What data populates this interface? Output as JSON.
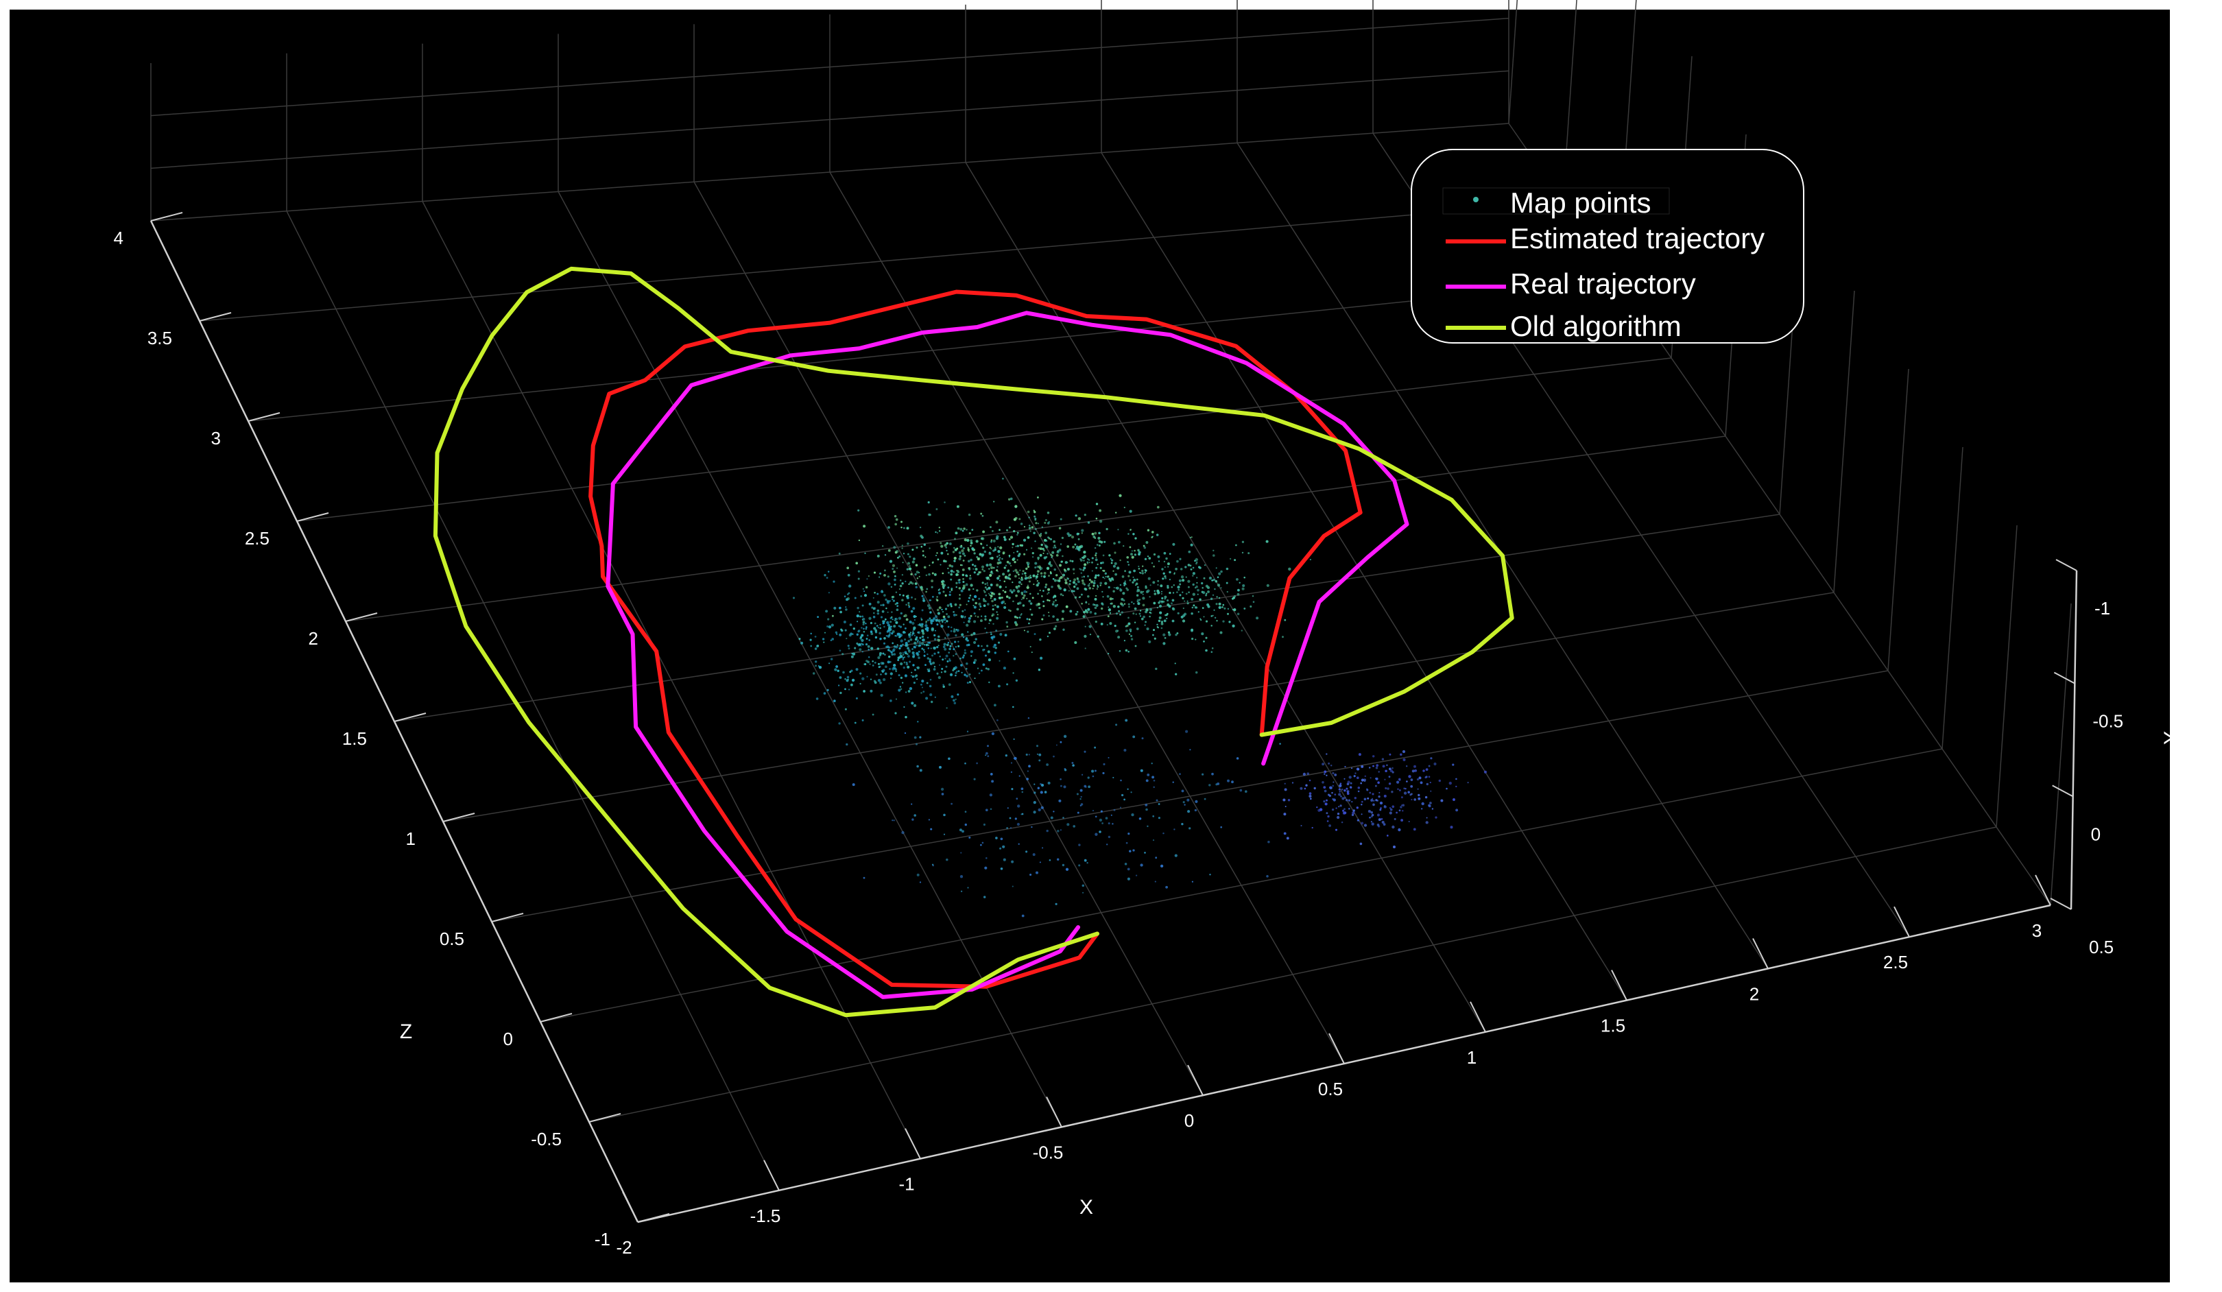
{
  "chart_data": {
    "type": "scatter3d",
    "title": "",
    "xlabel": "X",
    "ylabel": "Y",
    "zlabel": "Z",
    "x_ticks": [
      "-2",
      "-1.5",
      "-1",
      "-0.5",
      "0",
      "0.5",
      "1",
      "1.5",
      "2",
      "2.5",
      "3"
    ],
    "z_ticks": [
      "-1",
      "-0.5",
      "0",
      "0.5",
      "1",
      "1.5",
      "2",
      "2.5",
      "3",
      "3.5",
      "4"
    ],
    "y_ticks": [
      "-1",
      "-0.5",
      "0",
      "0.5"
    ],
    "xlim": [
      -2,
      3
    ],
    "zlim": [
      -1,
      4
    ],
    "ylim": [
      -1,
      0.5
    ],
    "grid": true,
    "background": "#000000",
    "legend": {
      "placement": "top-right",
      "entries": [
        {
          "label": "Map points",
          "color": "#3fb8a8",
          "marker": "point"
        },
        {
          "label": "Estimated trajectory",
          "color": "#ff1a1a",
          "marker": "line"
        },
        {
          "label": "Real trajectory",
          "color": "#ff1aff",
          "marker": "line"
        },
        {
          "label": "Old algorithm",
          "color": "#c8f02a",
          "marker": "line"
        }
      ]
    },
    "series": [
      {
        "name": "Estimated trajectory",
        "color": "#ff1a1a",
        "x": [
          -0.05,
          -0.15,
          -0.5,
          -0.8,
          -1.0,
          -1.05,
          -1.1,
          -1.0,
          -1.05,
          -1.0,
          -0.95,
          -0.85,
          -0.7,
          -0.55,
          -0.35,
          -0.1,
          0.2,
          0.45,
          0.7,
          0.9,
          1.1,
          1.3,
          1.55,
          1.65,
          1.7,
          1.62,
          1.45,
          1.25,
          1.0,
          0.85
        ],
        "z": [
          -0.1,
          -0.2,
          -0.25,
          -0.15,
          0.25,
          0.7,
          1.25,
          1.65,
          2.05,
          2.2,
          2.45,
          2.7,
          2.95,
          3.0,
          3.15,
          3.2,
          3.2,
          3.25,
          3.3,
          3.25,
          3.1,
          3.05,
          2.85,
          2.55,
          2.2,
          1.85,
          1.75,
          1.55,
          1.1,
          0.75
        ]
      },
      {
        "name": "Real trajectory",
        "color": "#ff1aff",
        "x": [
          -0.1,
          -0.2,
          -0.55,
          -0.85,
          -1.05,
          -1.15,
          -1.2,
          -1.05,
          -1.05,
          -0.95,
          -0.85,
          -0.7,
          -0.55,
          -0.4,
          -0.2,
          0.0,
          0.25,
          0.5,
          0.7,
          0.9,
          1.1,
          1.35,
          1.55,
          1.75,
          1.8,
          1.75,
          1.55,
          1.3,
          1.05,
          0.8
        ],
        "z": [
          -0.05,
          -0.15,
          -0.25,
          -0.2,
          0.2,
          0.75,
          1.3,
          1.75,
          2.0,
          2.25,
          2.5,
          2.65,
          2.8,
          2.95,
          3.0,
          3.05,
          3.05,
          3.1,
          3.1,
          3.15,
          3.05,
          2.95,
          2.75,
          2.35,
          2.0,
          1.75,
          1.6,
          1.4,
          1.0,
          0.6
        ]
      },
      {
        "name": "Old algorithm",
        "color": "#c8f02a",
        "x": [
          -0.05,
          -0.35,
          -0.7,
          -1.0,
          -1.2,
          -1.35,
          -1.45,
          -1.55,
          -1.6,
          -1.55,
          -1.4,
          -1.2,
          -1.0,
          -0.8,
          -0.6,
          -0.4,
          -0.3,
          -0.2,
          0.1,
          0.4,
          0.7,
          1.0,
          1.25,
          1.5,
          1.75,
          1.95,
          2.0,
          1.9,
          1.7,
          1.4,
          1.1,
          0.85
        ],
        "z": [
          -0.1,
          -0.15,
          -0.3,
          -0.25,
          -0.05,
          0.4,
          0.9,
          1.4,
          1.9,
          2.35,
          2.75,
          3.05,
          3.3,
          3.5,
          3.6,
          3.55,
          3.35,
          3.1,
          2.95,
          2.85,
          2.75,
          2.65,
          2.55,
          2.45,
          2.2,
          1.85,
          1.5,
          1.15,
          1.0,
          0.85,
          0.75,
          0.75
        ]
      }
    ]
  }
}
